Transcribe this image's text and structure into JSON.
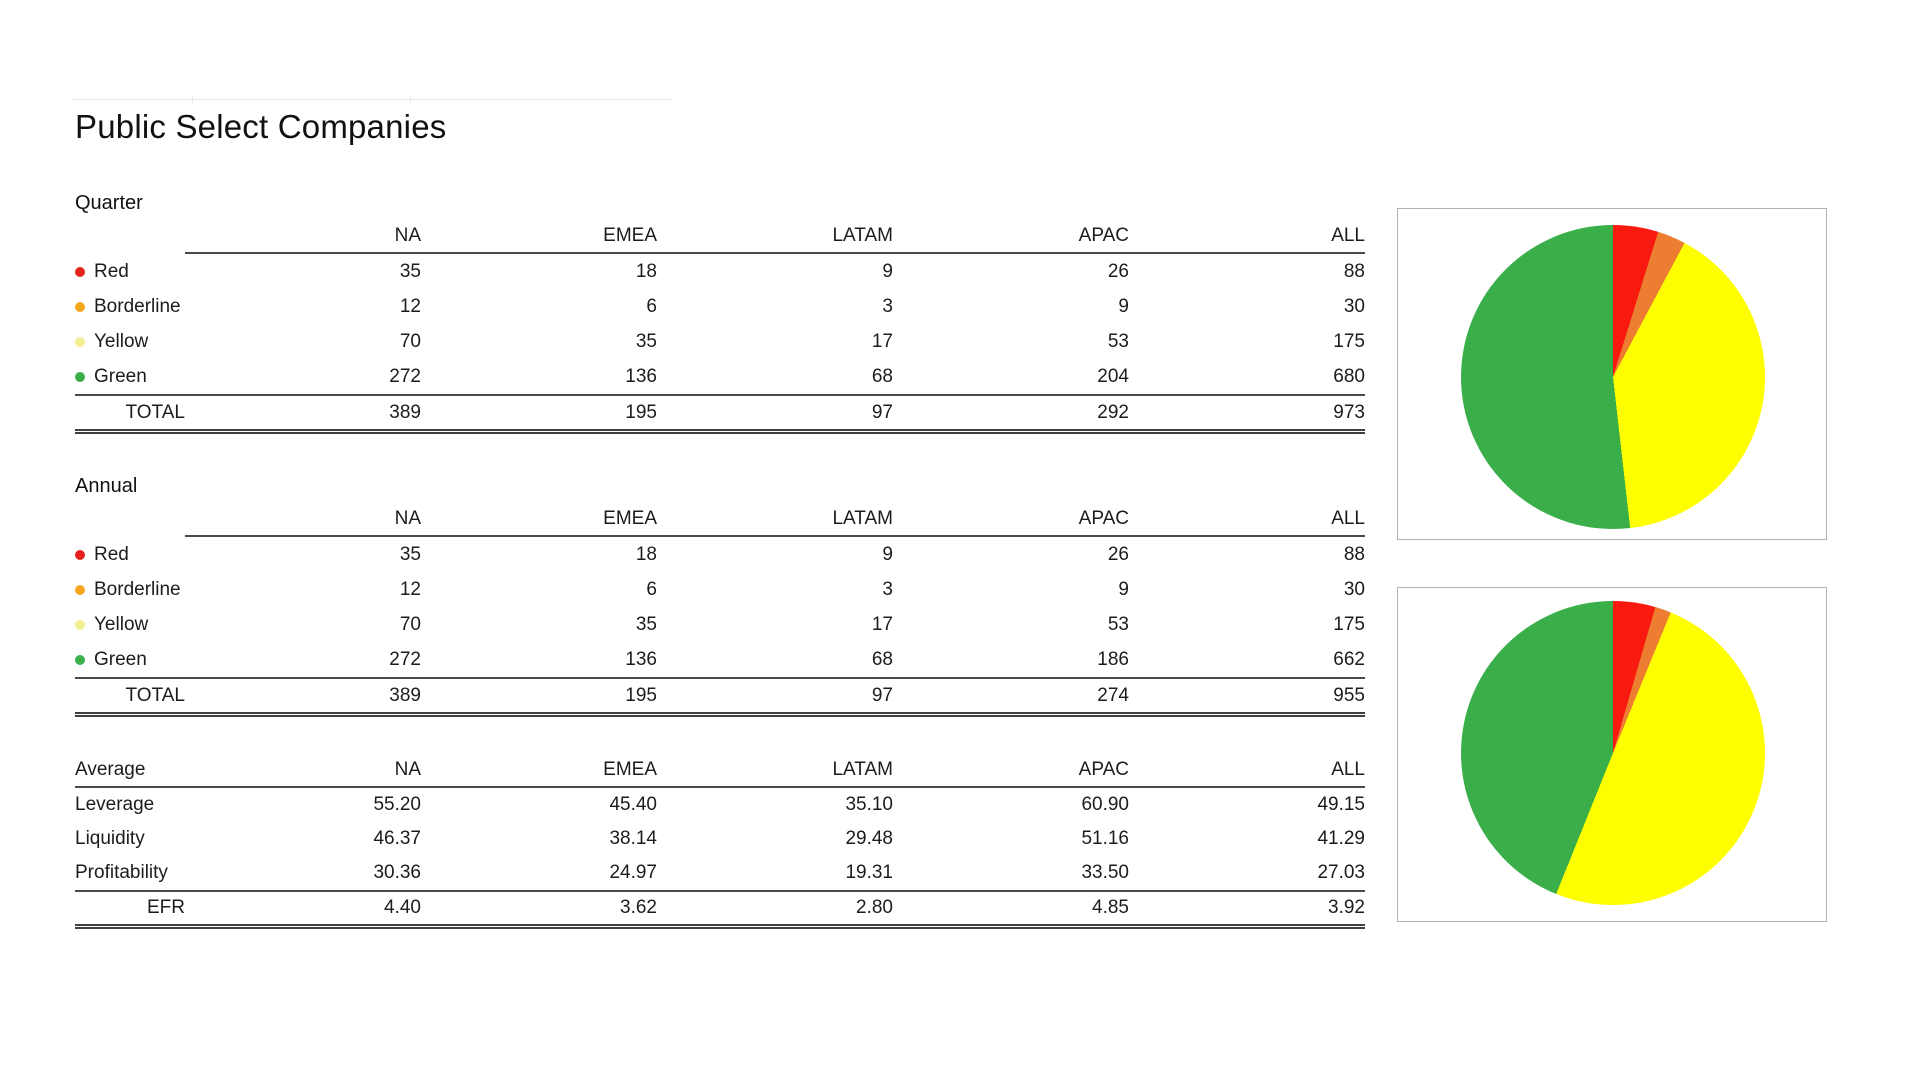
{
  "page": {
    "title": "Public Select Companies"
  },
  "tables": {
    "quarter": {
      "label": "Quarter",
      "columns": [
        "NA",
        "EMEA",
        "LATAM",
        "APAC",
        "ALL"
      ],
      "rows": [
        {
          "label": "Red",
          "bullet": "#E5231B",
          "values": [
            "35",
            "18",
            "9",
            "26",
            "88"
          ]
        },
        {
          "label": "Borderline",
          "bullet": "#F4A71C",
          "values": [
            "12",
            "6",
            "3",
            "9",
            "30"
          ]
        },
        {
          "label": "Yellow",
          "bullet": "#F2EF93",
          "values": [
            "70",
            "35",
            "17",
            "53",
            "175"
          ]
        },
        {
          "label": "Green",
          "bullet": "#3CAE4A",
          "values": [
            "272",
            "136",
            "68",
            "204",
            "680"
          ]
        }
      ],
      "total": {
        "label": "TOTAL",
        "values": [
          "389",
          "195",
          "97",
          "292",
          "973"
        ]
      }
    },
    "annual": {
      "label": "Annual",
      "columns": [
        "NA",
        "EMEA",
        "LATAM",
        "APAC",
        "ALL"
      ],
      "rows": [
        {
          "label": "Red",
          "bullet": "#E5231B",
          "values": [
            "35",
            "18",
            "9",
            "26",
            "88"
          ]
        },
        {
          "label": "Borderline",
          "bullet": "#F4A71C",
          "values": [
            "12",
            "6",
            "3",
            "9",
            "30"
          ]
        },
        {
          "label": "Yellow",
          "bullet": "#F2EF93",
          "values": [
            "70",
            "35",
            "17",
            "53",
            "175"
          ]
        },
        {
          "label": "Green",
          "bullet": "#3CAE4A",
          "values": [
            "272",
            "136",
            "68",
            "186",
            "662"
          ]
        }
      ],
      "total": {
        "label": "TOTAL",
        "values": [
          "389",
          "195",
          "97",
          "274",
          "955"
        ]
      }
    },
    "average": {
      "label": "Average",
      "columns": [
        "NA",
        "EMEA",
        "LATAM",
        "APAC",
        "ALL"
      ],
      "rows": [
        {
          "label": "Leverage",
          "values": [
            "55.20",
            "45.40",
            "35.10",
            "60.90",
            "49.15"
          ]
        },
        {
          "label": "Liquidity",
          "values": [
            "46.37",
            "38.14",
            "29.48",
            "51.16",
            "41.29"
          ]
        },
        {
          "label": "Profitability",
          "values": [
            "30.36",
            "24.97",
            "19.31",
            "33.50",
            "27.03"
          ]
        }
      ],
      "total": {
        "label": "EFR",
        "values": [
          "4.40",
          "3.62",
          "2.80",
          "4.85",
          "3.92"
        ]
      }
    }
  },
  "chart_data": [
    {
      "type": "pie",
      "title": "",
      "legend_position": "none",
      "start_angle": "12 o'clock, clockwise",
      "slices": [
        {
          "label": "Red",
          "pct": 4.8,
          "color": "#F81A0F"
        },
        {
          "label": "Borderline",
          "pct": 3.0,
          "color": "#ED7D31"
        },
        {
          "label": "Yellow",
          "pct": 40.4,
          "color": "#FEFE00"
        },
        {
          "label": "Green",
          "pct": 51.8,
          "color": "#3AAE49"
        }
      ]
    },
    {
      "type": "pie",
      "title": "",
      "legend_position": "none",
      "start_angle": "12 o'clock, clockwise",
      "slices": [
        {
          "label": "Red",
          "pct": 4.5,
          "color": "#F81A0F"
        },
        {
          "label": "Borderline",
          "pct": 1.7,
          "color": "#ED7D31"
        },
        {
          "label": "Yellow",
          "pct": 49.9,
          "color": "#FEFE00"
        },
        {
          "label": "Green",
          "pct": 43.9,
          "color": "#3AAE49"
        }
      ]
    }
  ]
}
